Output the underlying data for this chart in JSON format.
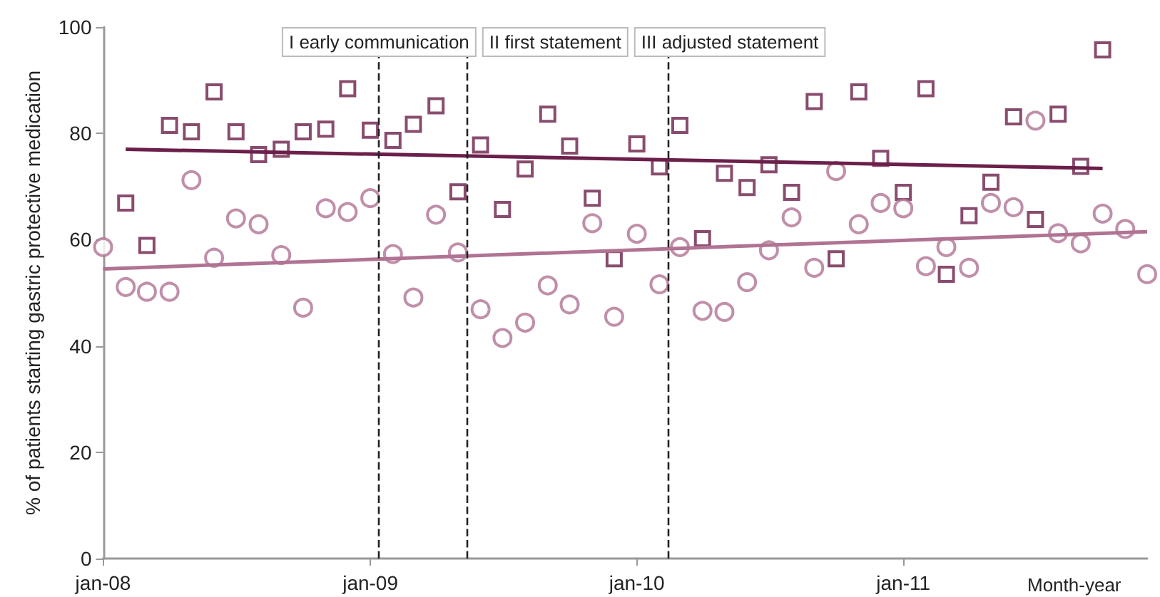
{
  "chart_data": {
    "type": "scatter",
    "xlabel": "Month-year",
    "ylabel": "% of patients starting gastric protective medication",
    "xlim": [
      "2008-01",
      "2011-12"
    ],
    "xticks": [
      {
        "value": "2008-01",
        "label": "jan-08"
      },
      {
        "value": "2009-01",
        "label": "jan-09"
      },
      {
        "value": "2010-01",
        "label": "jan-10"
      },
      {
        "value": "2011-01",
        "label": "jan-11"
      }
    ],
    "ylim": [
      0,
      100
    ],
    "yticks": [
      0,
      20,
      40,
      60,
      80,
      100
    ],
    "grid": false,
    "series": [
      {
        "marker": "square",
        "color": "#6b1f4a",
        "x": [
          "2008-02",
          "2008-03",
          "2008-04",
          "2008-05",
          "2008-06",
          "2008-07",
          "2008-08",
          "2008-09",
          "2008-10",
          "2008-11",
          "2008-12",
          "2009-01",
          "2009-02",
          "2009-03",
          "2009-04",
          "2009-05",
          "2009-06",
          "2009-07",
          "2009-08",
          "2009-09",
          "2009-10",
          "2009-11",
          "2009-12",
          "2010-01",
          "2010-02",
          "2010-03",
          "2010-04",
          "2010-05",
          "2010-06",
          "2010-07",
          "2010-08",
          "2010-09",
          "2010-10",
          "2010-11",
          "2010-12",
          "2011-01",
          "2011-02",
          "2011-03",
          "2011-04",
          "2011-05",
          "2011-06",
          "2011-07",
          "2011-08",
          "2011-09",
          "2011-10"
        ],
        "values": [
          66.9,
          58.9,
          81.5,
          80.3,
          87.8,
          80.3,
          76,
          77,
          80.3,
          80.8,
          88.4,
          80.6,
          78.7,
          81.7,
          85.2,
          69,
          77.8,
          65.7,
          73.3,
          83.6,
          77.6,
          67.8,
          56.4,
          78,
          73.7,
          81.5,
          60.2,
          72.5,
          69.8,
          74.1,
          68.9,
          86,
          56.4,
          87.8,
          75.3,
          68.9,
          88.4,
          53.5,
          64.5,
          70.8,
          83.1,
          63.8,
          83.6,
          73.8,
          95.7
        ]
      },
      {
        "marker": "circle",
        "color": "#b07393",
        "x": [
          "2008-01",
          "2008-02",
          "2008-03",
          "2008-04",
          "2008-05",
          "2008-06",
          "2008-07",
          "2008-08",
          "2008-09",
          "2008-10",
          "2008-11",
          "2008-12",
          "2009-01",
          "2009-02",
          "2009-03",
          "2009-04",
          "2009-05",
          "2009-06",
          "2009-07",
          "2009-08",
          "2009-09",
          "2009-10",
          "2009-11",
          "2009-12",
          "2010-01",
          "2010-02",
          "2010-03",
          "2010-04",
          "2010-05",
          "2010-06",
          "2010-07",
          "2010-08",
          "2010-09",
          "2010-10",
          "2010-11",
          "2010-12",
          "2011-01",
          "2011-02",
          "2011-03",
          "2011-04",
          "2011-05",
          "2011-06",
          "2011-07",
          "2011-08",
          "2011-09",
          "2011-10",
          "2011-11",
          "2011-12"
        ],
        "values": [
          58.6,
          51.1,
          50.2,
          50.2,
          71.2,
          56.6,
          64,
          62.9,
          57.1,
          47.2,
          65.9,
          65.2,
          67.8,
          57.3,
          49.1,
          64.7,
          57.6,
          46.9,
          41.5,
          44.4,
          51.4,
          47.8,
          63.1,
          45.5,
          61.1,
          51.6,
          58.6,
          46.6,
          46.4,
          52,
          58,
          64.2,
          54.7,
          72.9,
          62.9,
          66.9,
          65.9,
          55,
          58.6,
          54.7,
          66.9,
          66.1,
          82.4,
          61.2,
          59.3,
          64.9,
          62,
          53.5
        ]
      },
      {
        "type": "line",
        "marker": "none",
        "color": "#6b1f4a",
        "x": [
          "2008-02",
          "2011-10"
        ],
        "values": [
          77,
          73.4
        ]
      },
      {
        "type": "line",
        "marker": "none",
        "color": "#b07393",
        "x": [
          "2008-01",
          "2011-12"
        ],
        "values": [
          54.5,
          61.5
        ]
      }
    ],
    "ref_lines": [
      {
        "axis": "x",
        "value": "2009-01-13",
        "label": "I early communication",
        "line_style": "dashed",
        "color": "#222222"
      },
      {
        "axis": "x",
        "value": "2009-05-13",
        "label": "II first statement",
        "line_style": "dashed",
        "color": "#222222"
      },
      {
        "axis": "x",
        "value": "2010-02-13",
        "label": "III adjusted statement",
        "line_style": "dashed",
        "color": "#222222"
      }
    ]
  }
}
